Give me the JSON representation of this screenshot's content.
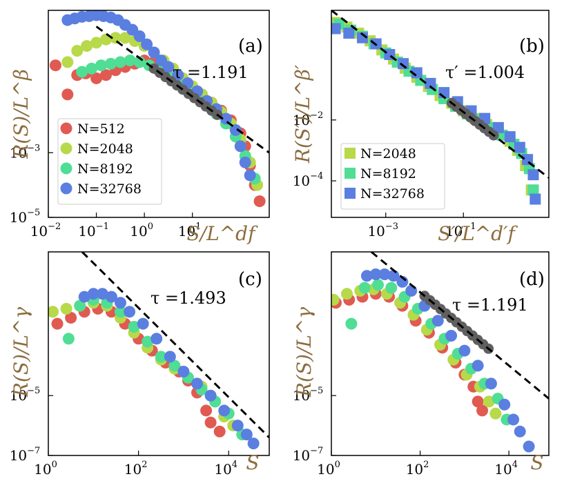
{
  "colors": {
    "N512": "#e05a52",
    "N2048": "#b7d94a",
    "N8192": "#4fde94",
    "N32768": "#5a7fe0",
    "fit": "#000000",
    "collapse": "#606060",
    "axis_label": "#8c6d3f"
  },
  "chart_data": [
    {
      "type": "scatter",
      "panel": "a",
      "label": "(a)",
      "xlabel": "S/L^df",
      "ylabel": "R(S)/L^β",
      "xscale": "log",
      "yscale": "log",
      "xlim_log10": [
        -2,
        2.6
      ],
      "ylim_log10": [
        -5,
        1.4
      ],
      "xticks": [
        {
          "base": "10",
          "exp": "−2",
          "v": -2
        },
        {
          "base": "10",
          "exp": "−1",
          "v": -1
        },
        {
          "base": "10",
          "exp": "0",
          "v": 0
        },
        {
          "base": "10",
          "exp": "1",
          "v": 1
        }
      ],
      "yticks": [
        {
          "base": "10",
          "exp": "−3",
          "v": -3
        },
        {
          "base": "10",
          "exp": "−5",
          "v": -5
        }
      ],
      "tau_text": "τ =1.191",
      "fit": {
        "slope": -1.191,
        "x_log10": [
          -1.0,
          2.6
        ],
        "y_log10": [
          0.9,
          -3.0
        ]
      },
      "legend": [
        "N=512",
        "N=2048",
        "N=8192",
        "N=32768"
      ],
      "series": [
        {
          "name": "N=512",
          "marker": "circle",
          "color_key": "N512",
          "x_log10": [
            -1.85,
            -1.6,
            -1.4,
            -1.22,
            -1.0,
            -0.8,
            -0.6,
            -0.4,
            -0.2,
            0,
            0.2,
            0.4,
            0.6,
            0.8,
            1.0,
            1.2,
            1.4,
            1.6,
            1.8,
            2.0,
            2.1,
            2.2,
            2.3,
            2.4
          ],
          "y_log10": [
            -0.3,
            -1.2,
            -0.6,
            -0.55,
            -0.7,
            -0.6,
            -0.45,
            -0.35,
            -0.25,
            -0.15,
            -0.2,
            -0.3,
            -0.5,
            -0.7,
            -0.95,
            -1.2,
            -1.45,
            -1.7,
            -2.0,
            -2.4,
            -2.8,
            -3.4,
            -4.0,
            -4.5
          ]
        },
        {
          "name": "N=2048",
          "marker": "circle",
          "color_key": "N2048",
          "x_log10": [
            -1.6,
            -1.4,
            -1.2,
            -1.0,
            -0.8,
            -0.6,
            -0.4,
            -0.2,
            0,
            0.2,
            0.4,
            0.6,
            0.8,
            1.0,
            1.2,
            1.4,
            1.6,
            1.8,
            2.0,
            2.2,
            2.35
          ],
          "y_log10": [
            -0.2,
            0.15,
            0.3,
            0.4,
            0.5,
            0.55,
            0.55,
            0.45,
            0.3,
            0.1,
            -0.15,
            -0.4,
            -0.7,
            -0.95,
            -1.2,
            -1.45,
            -1.75,
            -2.1,
            -2.6,
            -3.3,
            -4.0
          ]
        },
        {
          "name": "N=8192",
          "marker": "circle",
          "color_key": "N8192",
          "x_log10": [
            -1.3,
            -1.1,
            -0.9,
            -0.7,
            -0.5,
            -0.3,
            -0.1,
            0.1,
            0.3,
            0.5,
            0.7,
            0.9,
            1.1,
            1.3,
            1.5,
            1.7,
            1.9,
            2.1,
            2.3
          ],
          "y_log10": [
            -0.5,
            -0.4,
            -0.3,
            -0.25,
            -0.2,
            -0.15,
            -0.2,
            -0.3,
            -0.45,
            -0.65,
            -0.85,
            -1.05,
            -1.3,
            -1.55,
            -1.8,
            -2.1,
            -2.5,
            -3.1,
            -3.8
          ]
        },
        {
          "name": "N=32768",
          "marker": "circle",
          "color_key": "N32768",
          "x_log10": [
            -1.6,
            -1.45,
            -1.3,
            -1.15,
            -1.0,
            -0.85,
            -0.7,
            -0.55,
            -0.4,
            -0.25,
            -0.1,
            0.05,
            0.2,
            0.35,
            0.5,
            0.7,
            0.9,
            1.1,
            1.3,
            1.5,
            1.7,
            1.9,
            2.0,
            2.1,
            2.2
          ],
          "y_log10": [
            1.1,
            1.15,
            1.2,
            1.22,
            1.25,
            1.22,
            1.18,
            1.1,
            0.95,
            0.8,
            0.6,
            0.35,
            0.1,
            -0.15,
            -0.35,
            -0.6,
            -0.85,
            -1.1,
            -1.4,
            -1.65,
            -1.95,
            -2.3,
            -2.8,
            -3.3,
            -3.7
          ]
        }
      ]
    },
    {
      "type": "scatter",
      "panel": "b",
      "label": "(b)",
      "xlabel": "S′/L^d′f",
      "ylabel": "R(S′)/L^β′",
      "xscale": "log",
      "yscale": "log",
      "xlim_log10": [
        -4.4,
        1.2
      ],
      "ylim_log10": [
        -5.2,
        1.6
      ],
      "xticks": [
        {
          "base": "10",
          "exp": "−3",
          "v": -3
        },
        {
          "base": "10",
          "exp": "−1",
          "v": -1
        }
      ],
      "yticks": [
        {
          "base": "10",
          "exp": "−2",
          "v": -2
        },
        {
          "base": "10",
          "exp": "−4",
          "v": -4
        }
      ],
      "tau_text": "τ′ =1.004",
      "fit": {
        "slope": -1.004,
        "x_log10": [
          -4.4,
          1.2
        ],
        "y_log10": [
          1.6,
          -3.9
        ]
      },
      "legend": [
        "N=2048",
        "N=8192",
        "N=32768"
      ],
      "series": [
        {
          "name": "N=2048",
          "marker": "square",
          "color_key": "N2048",
          "x_log10": [
            -4.3,
            -4.0,
            -3.7,
            -3.4,
            -3.1,
            -2.8,
            -2.5,
            -2.2,
            -1.9,
            -1.6,
            -1.3,
            -1.0,
            -0.7,
            -0.4,
            -0.1,
            0.2,
            0.4,
            0.6,
            0.75
          ],
          "y_log10": [
            1.2,
            1.05,
            0.85,
            0.6,
            0.3,
            0.0,
            -0.3,
            -0.6,
            -0.9,
            -1.2,
            -1.45,
            -1.7,
            -1.95,
            -2.15,
            -2.4,
            -2.7,
            -3.0,
            -3.5,
            -4.3
          ]
        },
        {
          "name": "N=8192",
          "marker": "square",
          "color_key": "N8192",
          "x_log10": [
            -4.2,
            -3.9,
            -3.6,
            -3.3,
            -3.0,
            -2.7,
            -2.4,
            -2.1,
            -1.8,
            -1.5,
            -1.2,
            -0.9,
            -0.6,
            -0.3,
            0.0,
            0.3,
            0.5,
            0.7,
            0.8
          ],
          "y_log10": [
            1.15,
            0.95,
            0.75,
            0.5,
            0.2,
            -0.1,
            -0.4,
            -0.7,
            -1.0,
            -1.3,
            -1.55,
            -1.8,
            -2.0,
            -2.25,
            -2.5,
            -2.8,
            -3.1,
            -3.6,
            -4.3
          ]
        },
        {
          "name": "N=32768",
          "marker": "square",
          "color_key": "N32768",
          "x_log10": [
            -4.3,
            -3.95,
            -3.6,
            -3.25,
            -2.9,
            -2.55,
            -2.2,
            -1.85,
            -1.5,
            -1.15,
            -0.8,
            -0.45,
            -0.1,
            0.2,
            0.45,
            0.65,
            0.8,
            0.85
          ],
          "y_log10": [
            1.0,
            0.85,
            0.7,
            0.5,
            0.15,
            -0.15,
            -0.45,
            -0.8,
            -1.1,
            -1.4,
            -1.7,
            -1.95,
            -2.25,
            -2.55,
            -2.9,
            -3.3,
            -3.8,
            -4.6
          ]
        }
      ]
    },
    {
      "type": "scatter",
      "panel": "c",
      "label": "(c)",
      "xlabel": "S",
      "ylabel": "R(S)/L^γ",
      "xscale": "log",
      "yscale": "log",
      "xlim_log10": [
        0,
        4.9
      ],
      "ylim_log10": [
        -7,
        -0.2
      ],
      "xticks": [
        {
          "base": "10",
          "exp": "0",
          "v": 0
        },
        {
          "base": "10",
          "exp": "2",
          "v": 2
        },
        {
          "base": "10",
          "exp": "4",
          "v": 4
        }
      ],
      "yticks": [
        {
          "base": "10",
          "exp": "−5",
          "v": -5
        },
        {
          "base": "10",
          "exp": "−7",
          "v": -7
        }
      ],
      "tau_text": "τ =1.493",
      "fit": {
        "slope": -1.493,
        "x_log10": [
          0.75,
          4.9
        ],
        "y_log10": [
          -0.2,
          -6.4
        ]
      },
      "series": [
        {
          "name": "N=512",
          "marker": "circle",
          "color_key": "N512",
          "x_log10": [
            0.2,
            0.5,
            0.8,
            1.1,
            1.4,
            1.7,
            2.0,
            2.3,
            2.6,
            2.9,
            3.1,
            3.3,
            3.5,
            3.6,
            3.8
          ],
          "y_log10": [
            -2.6,
            -2.4,
            -2.2,
            -2.1,
            -2.2,
            -2.6,
            -3.1,
            -3.5,
            -3.9,
            -4.2,
            -4.5,
            -4.9,
            -5.5,
            -5.9,
            -6.2
          ]
        },
        {
          "name": "N=2048",
          "marker": "circle",
          "color_key": "N2048",
          "x_log10": [
            0.1,
            0.4,
            0.7,
            1.0,
            1.3,
            1.6,
            1.9,
            2.2,
            2.5,
            2.8,
            3.1,
            3.4,
            3.7,
            3.9,
            4.1
          ],
          "y_log10": [
            -2.2,
            -2.1,
            -2.0,
            -1.9,
            -2.0,
            -2.4,
            -2.9,
            -3.4,
            -3.8,
            -4.1,
            -4.4,
            -4.7,
            -5.2,
            -5.7,
            -6.0
          ]
        },
        {
          "name": "N=8192",
          "marker": "circle",
          "color_key": "N8192",
          "x_log10": [
            0.45,
            0.7,
            1.0,
            1.3,
            1.6,
            1.9,
            2.2,
            2.5,
            2.8,
            3.1,
            3.4,
            3.7,
            4.0,
            4.3
          ],
          "y_log10": [
            -3.1,
            -2.0,
            -1.8,
            -1.9,
            -2.2,
            -2.7,
            -3.2,
            -3.7,
            -4.0,
            -4.4,
            -4.8,
            -5.2,
            -5.6,
            -6.3
          ]
        },
        {
          "name": "N=32768",
          "marker": "circle",
          "color_key": "N32768",
          "x_log10": [
            0.8,
            1.0,
            1.2,
            1.4,
            1.6,
            1.8,
            2.1,
            2.4,
            2.7,
            3.0,
            3.3,
            3.6,
            3.9,
            4.2,
            4.4,
            4.55
          ],
          "y_log10": [
            -1.7,
            -1.6,
            -1.6,
            -1.7,
            -1.9,
            -2.2,
            -2.6,
            -3.1,
            -3.7,
            -4.2,
            -4.6,
            -5.0,
            -5.5,
            -6.0,
            -6.3,
            -6.6
          ]
        }
      ]
    },
    {
      "type": "scatter",
      "panel": "d",
      "label": "(d)",
      "xlabel": "S",
      "ylabel": "R(S)/L^γ",
      "xscale": "log",
      "yscale": "log",
      "xlim_log10": [
        0,
        4.9
      ],
      "ylim_log10": [
        -7,
        -0.2
      ],
      "xticks": [
        {
          "base": "10",
          "exp": "0",
          "v": 0
        },
        {
          "base": "10",
          "exp": "2",
          "v": 2
        },
        {
          "base": "10",
          "exp": "4",
          "v": 4
        }
      ],
      "yticks": [
        {
          "base": "10",
          "exp": "−5",
          "v": -5
        },
        {
          "base": "10",
          "exp": "−7",
          "v": -7
        }
      ],
      "tau_text": "τ =1.191",
      "fit": {
        "slope": -1.191,
        "x_log10": [
          0.9,
          4.9
        ],
        "y_log10": [
          -0.2,
          -5.1
        ]
      },
      "series": [
        {
          "name": "N=512",
          "marker": "circle",
          "color_key": "N512",
          "x_log10": [
            0.1,
            0.4,
            0.7,
            1.0,
            1.3,
            1.6,
            1.9,
            2.2,
            2.5,
            2.8,
            3.0,
            3.2,
            3.3,
            3.4
          ],
          "y_log10": [
            -1.9,
            -1.8,
            -1.7,
            -1.6,
            -1.7,
            -2.0,
            -2.5,
            -2.9,
            -3.4,
            -3.9,
            -4.3,
            -4.7,
            -5.2,
            -5.5
          ]
        },
        {
          "name": "N=2048",
          "marker": "circle",
          "color_key": "N2048",
          "x_log10": [
            0.05,
            0.35,
            0.65,
            0.95,
            1.25,
            1.55,
            1.85,
            2.15,
            2.45,
            2.75,
            3.05,
            3.35,
            3.55,
            3.7
          ],
          "y_log10": [
            -1.8,
            -1.6,
            -1.5,
            -1.45,
            -1.6,
            -1.9,
            -2.3,
            -2.8,
            -3.3,
            -3.8,
            -4.3,
            -4.7,
            -5.2,
            -5.6
          ]
        },
        {
          "name": "N=8192",
          "marker": "circle",
          "color_key": "N8192",
          "x_log10": [
            0.45,
            0.75,
            1.05,
            1.35,
            1.65,
            1.95,
            2.25,
            2.55,
            2.85,
            3.15,
            3.45,
            3.75,
            3.95
          ],
          "y_log10": [
            -2.6,
            -1.4,
            -1.3,
            -1.4,
            -1.7,
            -2.1,
            -2.6,
            -3.1,
            -3.6,
            -4.1,
            -4.6,
            -5.1,
            -5.8
          ]
        },
        {
          "name": "N=32768",
          "marker": "circle",
          "color_key": "N32768",
          "x_log10": [
            0.8,
            1.0,
            1.2,
            1.4,
            1.6,
            1.8,
            2.1,
            2.4,
            2.7,
            3.0,
            3.3,
            3.6,
            3.9,
            4.1,
            4.25,
            4.45
          ],
          "y_log10": [
            -1.0,
            -0.95,
            -0.95,
            -1.0,
            -1.2,
            -1.5,
            -2.0,
            -2.5,
            -3.0,
            -3.5,
            -4.0,
            -4.6,
            -5.3,
            -5.8,
            -6.2,
            -6.7
          ]
        }
      ]
    }
  ]
}
